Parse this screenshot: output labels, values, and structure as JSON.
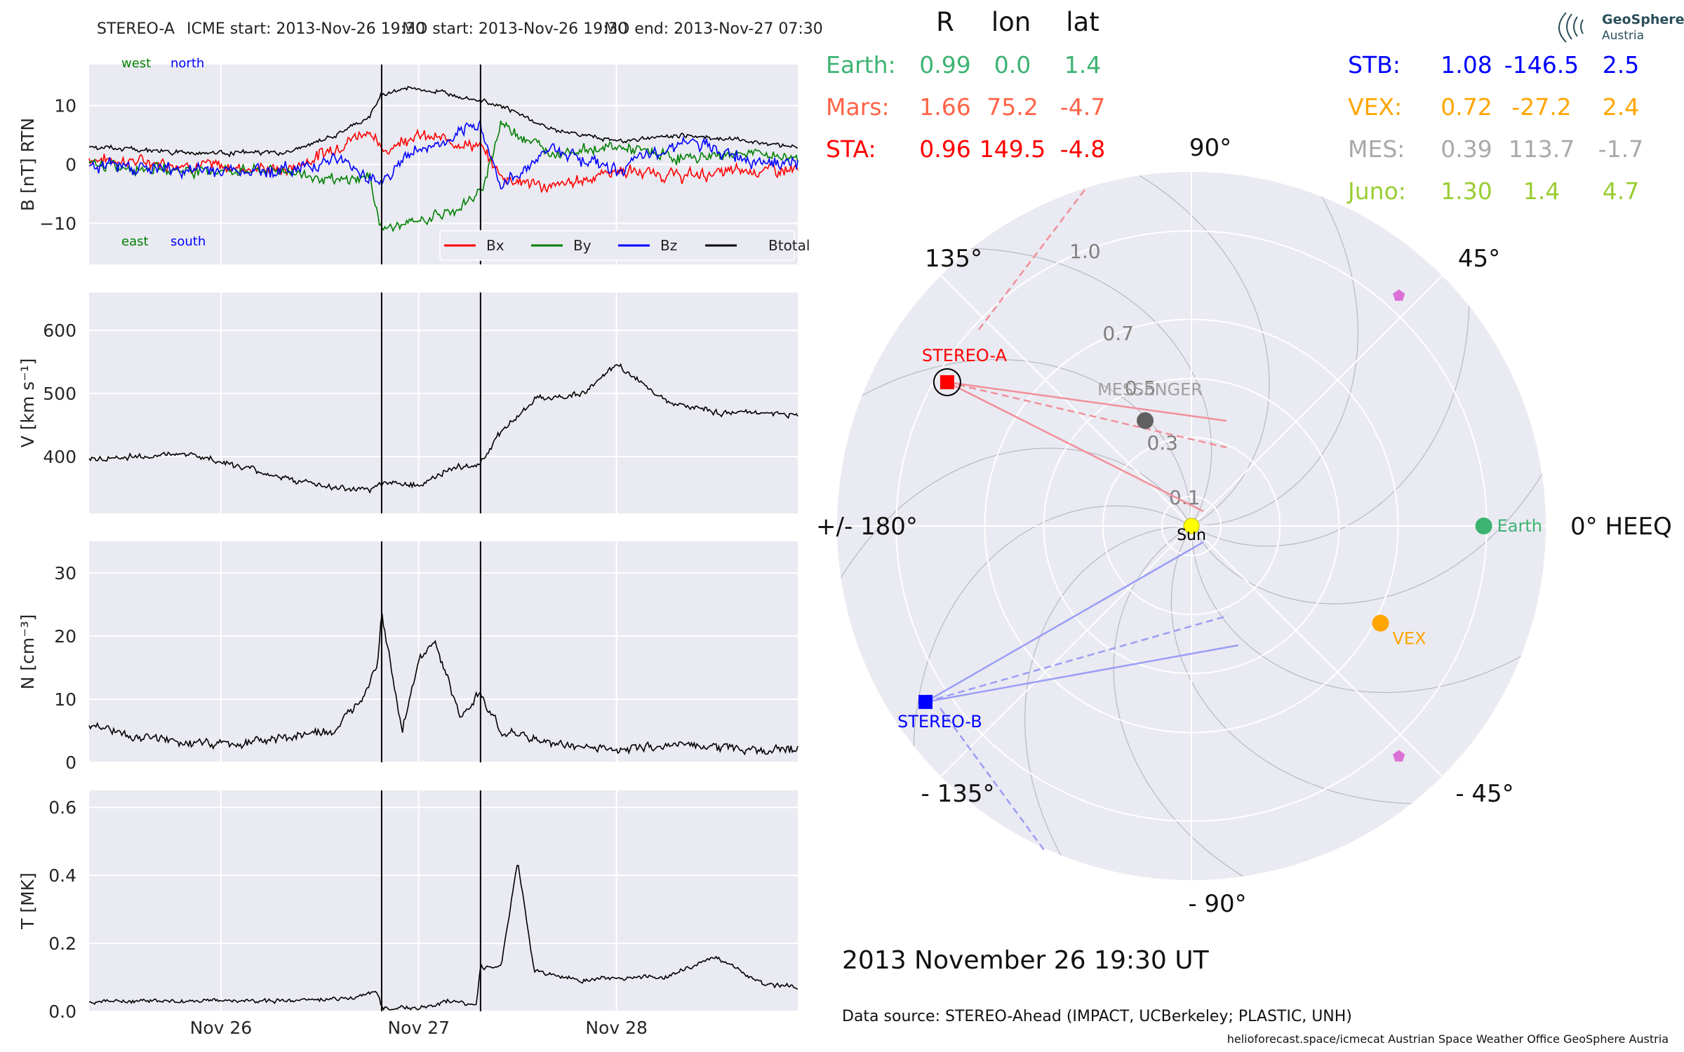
{
  "header": {
    "spacecraft": "STEREO-A",
    "icme_start": "ICME start: 2013-Nov-26 19:30",
    "mo_start": "MO start: 2013-Nov-26 19:30",
    "mo_end": "MO end: 2013-Nov-27 07:30"
  },
  "colors": {
    "bx": "#ff0000",
    "by": "#008000",
    "bz": "#0000ff",
    "btotal": "#000000",
    "earth": "#3cb371",
    "mars": "#ff6347",
    "sta": "#ff0000",
    "stb": "#0000ff",
    "vex": "#ffa500",
    "mes": "#a9a9a9",
    "juno": "#9acd32",
    "sun": "#ffff00",
    "messenger": "#606060",
    "juno_marker": "#da70d6"
  },
  "time_axis": {
    "start": "2013-11-25 08:00",
    "end": "2013-11-28 22:00",
    "ticks": [
      {
        "label": "Nov 26",
        "time": "2013-11-26 00:00"
      },
      {
        "label": "Nov 27",
        "time": "2013-11-27 00:00"
      },
      {
        "label": "Nov 28",
        "time": "2013-11-28 00:00"
      }
    ],
    "event_lines": [
      "2013-11-26 19:30",
      "2013-11-27 07:30"
    ]
  },
  "chart_data": [
    {
      "type": "line",
      "panel": "magnetic-field",
      "ylabel": "B [nT] RTN",
      "ylim": [
        -17,
        17
      ],
      "yticks": [
        {
          "value": 10,
          "label": "10"
        },
        {
          "value": 0,
          "label": "0"
        },
        {
          "value": -10,
          "label": "−10"
        }
      ],
      "annotations": {
        "west": "west",
        "north": "north",
        "east": "east",
        "south": "south"
      },
      "legend_placement": "bottom-right",
      "series": [
        {
          "name": "Bx",
          "time": [
            "2013-11-25 08:00",
            "2013-11-25 20:00",
            "2013-11-26 08:00",
            "2013-11-26 14:00",
            "2013-11-26 18:00",
            "2013-11-26 19:30",
            "2013-11-26 23:00",
            "2013-11-27 04:00",
            "2013-11-27 07:30",
            "2013-11-27 10:00",
            "2013-11-27 16:00",
            "2013-11-28 00:00",
            "2013-11-28 08:00",
            "2013-11-28 16:00",
            "2013-11-28 22:00"
          ],
          "values": [
            1,
            0,
            -1,
            3,
            6,
            2,
            5,
            4,
            3,
            -2,
            -4,
            -1,
            -2,
            -1,
            -1
          ]
        },
        {
          "name": "By",
          "time": [
            "2013-11-25 08:00",
            "2013-11-25 20:00",
            "2013-11-26 08:00",
            "2013-11-26 14:00",
            "2013-11-26 18:00",
            "2013-11-26 19:30",
            "2013-11-26 23:00",
            "2013-11-27 04:00",
            "2013-11-27 07:30",
            "2013-11-27 10:00",
            "2013-11-27 16:00",
            "2013-11-28 00:00",
            "2013-11-28 08:00",
            "2013-11-28 16:00",
            "2013-11-28 22:00"
          ],
          "values": [
            0,
            -1,
            -1,
            -3,
            -2,
            -11,
            -10,
            -8,
            -5,
            7,
            2,
            3,
            1,
            2,
            1
          ]
        },
        {
          "name": "Bz",
          "time": [
            "2013-11-25 08:00",
            "2013-11-25 20:00",
            "2013-11-26 08:00",
            "2013-11-26 14:00",
            "2013-11-26 18:00",
            "2013-11-26 19:30",
            "2013-11-26 23:00",
            "2013-11-27 04:00",
            "2013-11-27 07:30",
            "2013-11-27 10:00",
            "2013-11-27 16:00",
            "2013-11-28 00:00",
            "2013-11-28 08:00",
            "2013-11-28 16:00",
            "2013-11-28 22:00"
          ],
          "values": [
            0,
            -1,
            -1,
            1,
            -2,
            -3,
            2,
            4,
            7,
            -4,
            3,
            -1,
            4,
            1,
            0
          ]
        },
        {
          "name": "Btotal",
          "time": [
            "2013-11-25 08:00",
            "2013-11-25 20:00",
            "2013-11-26 08:00",
            "2013-11-26 14:00",
            "2013-11-26 18:00",
            "2013-11-26 19:30",
            "2013-11-26 23:00",
            "2013-11-27 04:00",
            "2013-11-27 07:30",
            "2013-11-27 10:00",
            "2013-11-27 16:00",
            "2013-11-28 00:00",
            "2013-11-28 08:00",
            "2013-11-28 16:00",
            "2013-11-28 22:00"
          ],
          "values": [
            3,
            2,
            2,
            5,
            8,
            12,
            13,
            12,
            11,
            10,
            6,
            4,
            5,
            4,
            3
          ]
        }
      ]
    },
    {
      "type": "line",
      "panel": "speed",
      "ylabel": "V [km s⁻¹]",
      "ylim": [
        310,
        660
      ],
      "yticks": [
        {
          "value": 600,
          "label": "600"
        },
        {
          "value": 500,
          "label": "500"
        },
        {
          "value": 400,
          "label": "400"
        }
      ],
      "series": [
        {
          "name": "V",
          "time": [
            "2013-11-25 08:00",
            "2013-11-25 14:00",
            "2013-11-25 20:00",
            "2013-11-26 02:00",
            "2013-11-26 08:00",
            "2013-11-26 14:00",
            "2013-11-26 18:00",
            "2013-11-26 19:30",
            "2013-11-27 00:00",
            "2013-11-27 04:00",
            "2013-11-27 07:30",
            "2013-11-27 10:00",
            "2013-11-27 14:00",
            "2013-11-27 20:00",
            "2013-11-28 00:00",
            "2013-11-28 06:00",
            "2013-11-28 12:00",
            "2013-11-28 18:00",
            "2013-11-28 22:00"
          ],
          "values": [
            395,
            400,
            405,
            385,
            365,
            350,
            345,
            360,
            355,
            380,
            390,
            440,
            490,
            500,
            545,
            490,
            470,
            470,
            465
          ]
        }
      ]
    },
    {
      "type": "line",
      "panel": "density",
      "ylabel": "N [cm⁻³]",
      "ylim": [
        0,
        35
      ],
      "yticks": [
        {
          "value": 30,
          "label": "30"
        },
        {
          "value": 20,
          "label": "20"
        },
        {
          "value": 10,
          "label": "10"
        },
        {
          "value": 0,
          "label": "0"
        }
      ],
      "series": [
        {
          "name": "N",
          "time": [
            "2013-11-25 08:00",
            "2013-11-25 14:00",
            "2013-11-25 20:00",
            "2013-11-26 02:00",
            "2013-11-26 08:00",
            "2013-11-26 14:00",
            "2013-11-26 17:00",
            "2013-11-26 19:00",
            "2013-11-26 19:30",
            "2013-11-26 22:00",
            "2013-11-27 00:00",
            "2013-11-27 02:00",
            "2013-11-27 05:00",
            "2013-11-27 07:30",
            "2013-11-27 10:00",
            "2013-11-27 16:00",
            "2013-11-28 00:00",
            "2013-11-28 08:00",
            "2013-11-28 16:00",
            "2013-11-28 22:00"
          ],
          "values": [
            6,
            4,
            3,
            3,
            4,
            5,
            10,
            16,
            24,
            5,
            16,
            19,
            7,
            11,
            5,
            3,
            2,
            3,
            2,
            2
          ]
        }
      ]
    },
    {
      "type": "line",
      "panel": "temperature",
      "ylabel": "T [MK]",
      "ylim": [
        0,
        0.65
      ],
      "yticks": [
        {
          "value": 0.6,
          "label": "0.6"
        },
        {
          "value": 0.4,
          "label": "0.4"
        },
        {
          "value": 0.2,
          "label": "0.2"
        },
        {
          "value": 0.0,
          "label": "0.0"
        }
      ],
      "series": [
        {
          "name": "T",
          "time": [
            "2013-11-25 08:00",
            "2013-11-25 20:00",
            "2013-11-26 08:00",
            "2013-11-26 16:00",
            "2013-11-26 19:00",
            "2013-11-26 19:30",
            "2013-11-27 00:00",
            "2013-11-27 04:00",
            "2013-11-27 07:00",
            "2013-11-27 07:30",
            "2013-11-27 10:00",
            "2013-11-27 12:00",
            "2013-11-27 14:00",
            "2013-11-27 20:00",
            "2013-11-28 00:00",
            "2013-11-28 06:00",
            "2013-11-28 12:00",
            "2013-11-28 18:00",
            "2013-11-28 22:00"
          ],
          "values": [
            0.03,
            0.03,
            0.03,
            0.04,
            0.06,
            0.01,
            0.01,
            0.03,
            0.02,
            0.13,
            0.13,
            0.44,
            0.12,
            0.09,
            0.1,
            0.1,
            0.16,
            0.08,
            0.07
          ]
        }
      ]
    }
  ],
  "legend": {
    "items": [
      "Bx",
      "By",
      "Bz",
      "Btotal"
    ]
  },
  "positions_table": {
    "headers": [
      "R",
      "lon",
      "lat"
    ],
    "left": [
      {
        "name": "Earth:",
        "R": "0.99",
        "lon": "0.0",
        "lat": "1.4",
        "color_key": "earth"
      },
      {
        "name": "Mars:",
        "R": "1.66",
        "lon": "75.2",
        "lat": "-4.7",
        "color_key": "mars"
      },
      {
        "name": "STA:",
        "R": "0.96",
        "lon": "149.5",
        "lat": "-4.8",
        "color_key": "sta"
      }
    ],
    "right": [
      {
        "name": "STB:",
        "R": "1.08",
        "lon": "-146.5",
        "lat": "2.5",
        "color_key": "stb"
      },
      {
        "name": "VEX:",
        "R": "0.72",
        "lon": "-27.2",
        "lat": "2.4",
        "color_key": "vex"
      },
      {
        "name": "MES:",
        "R": "0.39",
        "lon": "113.7",
        "lat": "-1.7",
        "color_key": "mes"
      },
      {
        "name": "Juno:",
        "R": "1.30",
        "lon": "1.4",
        "lat": "4.7",
        "color_key": "juno"
      }
    ]
  },
  "polar_plot": {
    "angle_labels": [
      {
        "deg": 90,
        "label": "90°"
      },
      {
        "deg": 135,
        "label": "135°"
      },
      {
        "deg": 45,
        "label": "45°"
      },
      {
        "deg": 180,
        "label": "+/- 180°"
      },
      {
        "deg": 0,
        "label": "0° HEEQ"
      },
      {
        "deg": -135,
        "label": "- 135°"
      },
      {
        "deg": -45,
        "label": "- 45°"
      },
      {
        "deg": -90,
        "label": "- 90°"
      }
    ],
    "r_max": 1.2,
    "radial_labels": [
      {
        "r": 0.1,
        "label": "0.1"
      },
      {
        "r": 0.3,
        "label": "0.3"
      },
      {
        "r": 0.5,
        "label": "0.5"
      },
      {
        "r": 0.7,
        "label": "0.7"
      },
      {
        "r": 1.0,
        "label": "1.0"
      }
    ],
    "bodies": [
      {
        "name": "Sun",
        "label": "Sun",
        "r": 0.0,
        "lon": 0.0,
        "marker": "circle",
        "color_key": "sun"
      },
      {
        "name": "Earth",
        "label": "Earth",
        "r": 0.99,
        "lon": 0.0,
        "marker": "circle",
        "color_key": "earth"
      },
      {
        "name": "VEX",
        "label": "VEX",
        "r": 0.72,
        "lon": -27.2,
        "marker": "circle",
        "color_key": "vex"
      },
      {
        "name": "MESSENGER",
        "label": "MESSENGER",
        "r": 0.39,
        "lon": 113.7,
        "marker": "circle",
        "color_key": "messenger"
      },
      {
        "name": "STEREO-A",
        "label": "STEREO-A",
        "r": 0.96,
        "lon": 149.5,
        "marker": "square",
        "color_key": "sta"
      },
      {
        "name": "STEREO-B",
        "label": "STEREO-B",
        "r": 1.08,
        "lon": -146.5,
        "marker": "square",
        "color_key": "stb"
      },
      {
        "name": "Juno-1",
        "label": "",
        "r": 1.05,
        "lon": 48.0,
        "marker": "pentagon",
        "color_key": "juno_marker"
      },
      {
        "name": "Juno-2",
        "label": "",
        "r": 1.05,
        "lon": -48.0,
        "marker": "pentagon",
        "color_key": "juno_marker"
      }
    ]
  },
  "footer": {
    "date": "2013 November 26  19:30 UT",
    "source": "Data source: STEREO-Ahead (IMPACT, UCBerkeley; PLASTIC, UNH)",
    "credits": "helioforecast.space/icmecat   Austrian Space Weather Office   GeoSphere Austria",
    "logo_line1": "GeoSphere",
    "logo_line2": "Austria"
  }
}
